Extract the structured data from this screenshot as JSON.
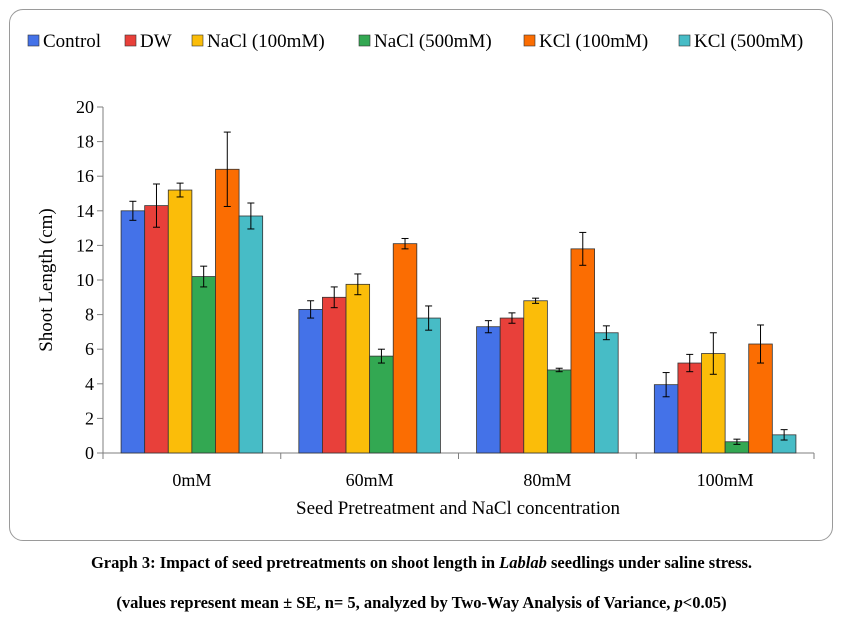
{
  "chart_data": {
    "type": "bar",
    "title": "",
    "xlabel": "Seed Pretreatment and NaCl concentration",
    "ylabel": "Shoot Length (cm)",
    "ylim": [
      0,
      20
    ],
    "yticks": [
      0,
      2,
      4,
      6,
      8,
      10,
      12,
      14,
      16,
      18,
      20
    ],
    "grid": false,
    "legend_position": "top",
    "categories": [
      "0mM",
      "60mM",
      "80mM",
      "100mM"
    ],
    "series": [
      {
        "name": "Control",
        "color": "#4472e8",
        "values": [
          14.0,
          8.3,
          7.3,
          3.95
        ],
        "errors": [
          0.55,
          0.5,
          0.35,
          0.7
        ]
      },
      {
        "name": "DW",
        "color": "#e8403a",
        "values": [
          14.3,
          9.0,
          7.8,
          5.2
        ],
        "errors": [
          1.25,
          0.6,
          0.3,
          0.5
        ]
      },
      {
        "name": "NaCl (100mM)",
        "color": "#fbbd09",
        "values": [
          15.2,
          9.75,
          8.8,
          5.75
        ],
        "errors": [
          0.4,
          0.6,
          0.15,
          1.2
        ]
      },
      {
        "name": "NaCl (500mM)",
        "color": "#33a852",
        "values": [
          10.2,
          5.6,
          4.8,
          0.65
        ],
        "errors": [
          0.6,
          0.4,
          0.1,
          0.15
        ]
      },
      {
        "name": "KCl (100mM)",
        "color": "#fb6d02",
        "values": [
          16.4,
          12.1,
          11.8,
          6.3
        ],
        "errors": [
          2.15,
          0.3,
          0.95,
          1.1
        ]
      },
      {
        "name": "KCl (500mM)",
        "color": "#47bcc6",
        "values": [
          13.7,
          7.8,
          6.95,
          1.05
        ],
        "errors": [
          0.75,
          0.7,
          0.4,
          0.3
        ]
      }
    ]
  },
  "caption": {
    "line1_prefix": "Graph 3: Impact of seed pretreatments on shoot length in ",
    "line1_italic": "Lablab",
    "line1_suffix": " seedlings under saline stress.",
    "line2_prefix": "(values represent mean ± SE, n= 5, analyzed by Two-Way Analysis of Variance, ",
    "line2_italic": "p",
    "line2_suffix": "<0.05)"
  }
}
